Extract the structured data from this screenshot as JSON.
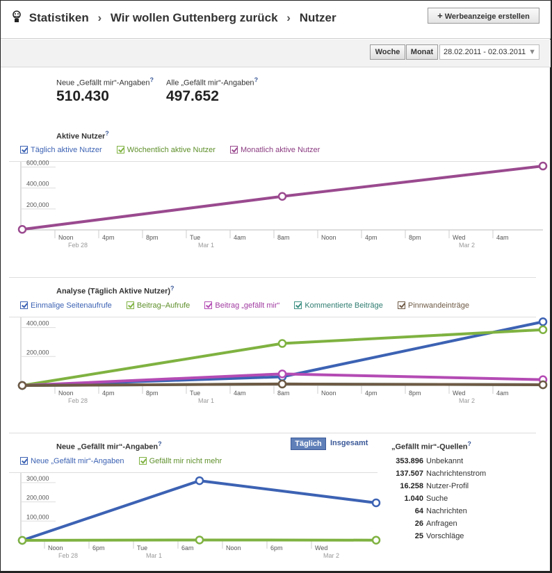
{
  "header": {
    "crumbs": [
      "Statistiken",
      "Wir wollen Guttenberg zurück",
      "Nutzer"
    ],
    "ad_button": "Werbeanzeige erstellen"
  },
  "toolbar": {
    "week": "Woche",
    "month": "Monat",
    "date_range": "28.02.2011 - 02.03.2011"
  },
  "metrics": [
    {
      "label": "Neue „Gefällt mir“-Angaben",
      "value": "510.430"
    },
    {
      "label": "Alle „Gefällt mir“-Angaben",
      "value": "497.652"
    }
  ],
  "help_glyph": "?",
  "colors": {
    "blue": "#3c62b3",
    "green": "#7fb241",
    "purple": "#9a4a8f",
    "magenta": "#b44bb4",
    "teal": "#3c8f82",
    "brown": "#6e5a45"
  },
  "chart_data": [
    {
      "type": "line",
      "title": "Aktive Nutzer",
      "x_ticks": [
        "Noon",
        "4pm",
        "8pm",
        "Tue",
        "4am",
        "8am",
        "Noon",
        "4pm",
        "8pm",
        "Wed",
        "4am"
      ],
      "x_subticks": [
        "Feb 28",
        "Mar 1",
        "Mar 2"
      ],
      "y_ticks": [
        "200,000",
        "400,000",
        "600,000"
      ],
      "ylim": [
        0,
        650000
      ],
      "x": [
        "Feb 28",
        "Mar 1",
        "Mar 2"
      ],
      "series": [
        {
          "name": "Täglich aktive Nutzer",
          "color": "#3c62b3",
          "values": [
            null,
            null,
            null
          ]
        },
        {
          "name": "Wöchentlich aktive Nutzer",
          "color": "#7fb241",
          "values": [
            null,
            null,
            null
          ]
        },
        {
          "name": "Monatlich aktive Nutzer",
          "color": "#9a4a8f",
          "values": [
            5000,
            320000,
            610000
          ]
        }
      ]
    },
    {
      "type": "line",
      "title": "Analyse (Täglich Aktive Nutzer)",
      "x_ticks": [
        "Noon",
        "4pm",
        "8pm",
        "Tue",
        "4am",
        "8am",
        "Noon",
        "4pm",
        "8pm",
        "Wed",
        "4am"
      ],
      "x_subticks": [
        "Feb 28",
        "Mar 1",
        "Mar 2"
      ],
      "y_ticks": [
        "200,000",
        "400,000"
      ],
      "ylim": [
        0,
        470000
      ],
      "x": [
        "Feb 28",
        "Mar 1",
        "Mar 2"
      ],
      "series": [
        {
          "name": "Einmalige Seitenaufrufe",
          "color": "#3c62b3",
          "values": [
            0,
            60000,
            440000
          ]
        },
        {
          "name": "Beitrag–Aufrufe",
          "color": "#7fb241",
          "values": [
            0,
            290000,
            385000
          ]
        },
        {
          "name": "Beitrag „gefällt mir“",
          "color": "#b44bb4",
          "values": [
            0,
            80000,
            40000
          ]
        },
        {
          "name": "Kommentierte Beiträge",
          "color": "#3c8f82",
          "values": [
            0,
            10000,
            5000
          ]
        },
        {
          "name": "Pinnwandeinträge",
          "color": "#6e5a45",
          "values": [
            0,
            10000,
            5000
          ]
        }
      ]
    },
    {
      "type": "line",
      "title": "Neue „Gefällt mir“-Angaben",
      "x_ticks": [
        "Noon",
        "6pm",
        "Tue",
        "6am",
        "Noon",
        "6pm",
        "Wed"
      ],
      "x_subticks": [
        "Feb 28",
        "Mar 1",
        "Mar 2"
      ],
      "y_ticks": [
        "100,000",
        "200,000",
        "300,000"
      ],
      "ylim": [
        0,
        350000
      ],
      "x": [
        "Feb 28",
        "Mar 1",
        "Mar 2"
      ],
      "series": [
        {
          "name": "Neue „Gefällt mir“-Angaben",
          "color": "#3c62b3",
          "values": [
            0,
            310000,
            195000
          ]
        },
        {
          "name": "Gefällt mir nicht mehr",
          "color": "#7fb241",
          "values": [
            0,
            2000,
            1000
          ]
        }
      ]
    }
  ],
  "likes_tabs": {
    "daily": "Täglich",
    "total": "Insgesamt"
  },
  "sources": {
    "title": "„Gefällt mir“-Quellen",
    "rows": [
      {
        "value": "353.896",
        "label": "Unbekannt"
      },
      {
        "value": "137.507",
        "label": "Nachrichtenstrom"
      },
      {
        "value": "16.258",
        "label": "Nutzer-Profil"
      },
      {
        "value": "1.040",
        "label": "Suche"
      },
      {
        "value": "64",
        "label": "Nachrichten"
      },
      {
        "value": "26",
        "label": "Anfragen"
      },
      {
        "value": "25",
        "label": "Vorschläge"
      }
    ]
  }
}
